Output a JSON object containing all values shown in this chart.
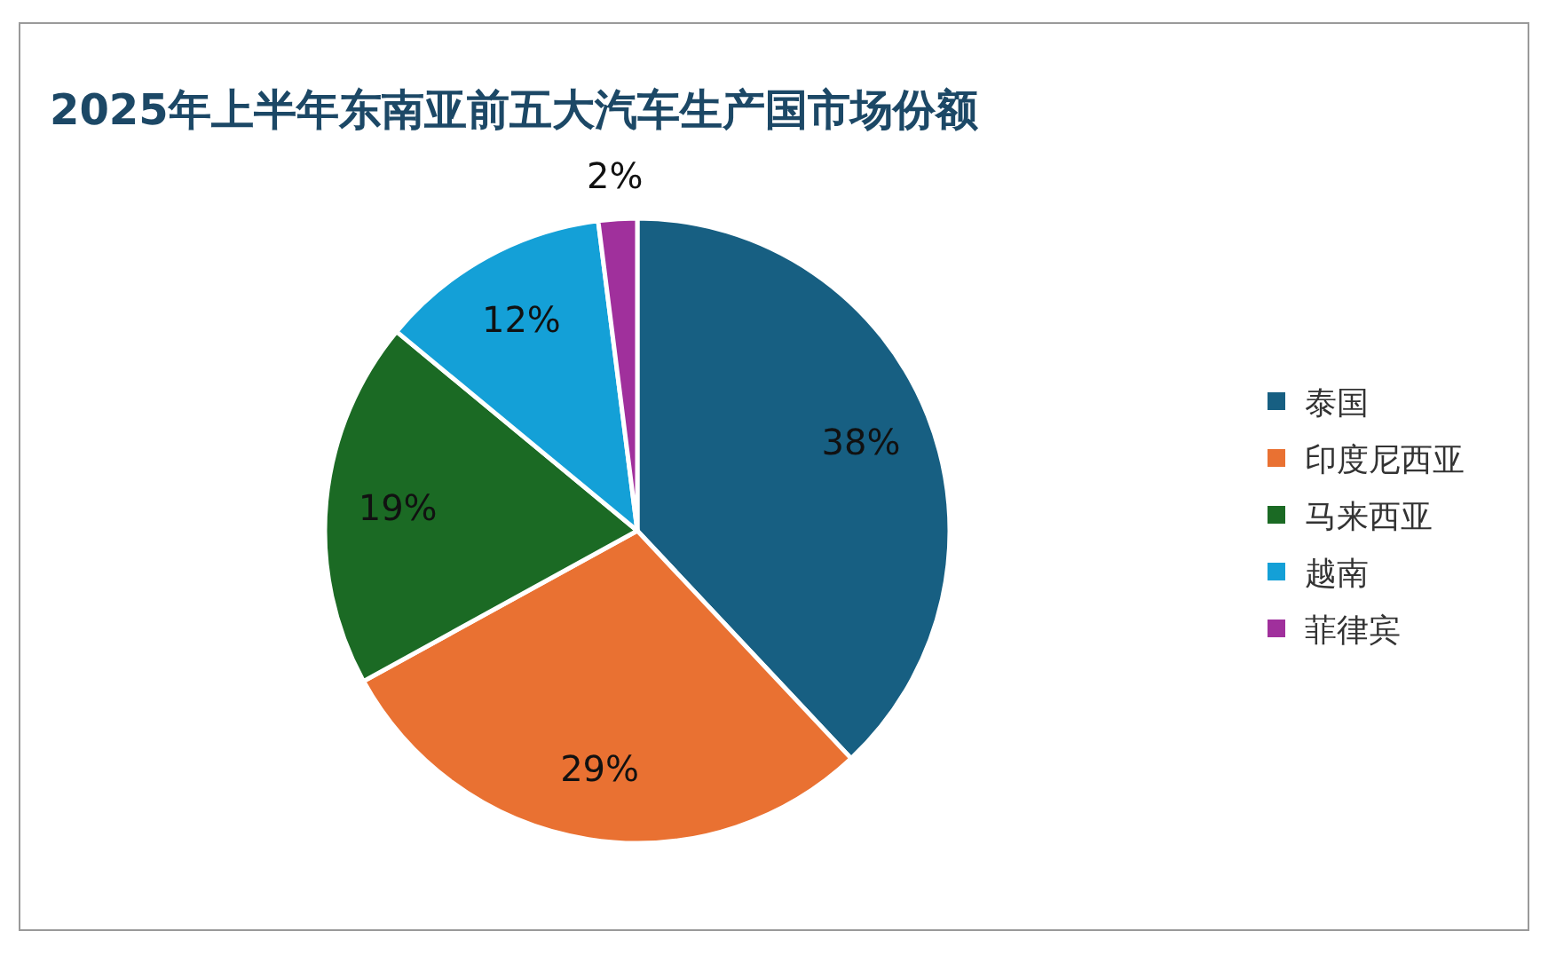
{
  "chart_data": {
    "type": "pie",
    "title": "2025年上半年东南亚前五大汽车生产国市场份额",
    "categories": [
      "泰国",
      "印度尼西亚",
      "马来西亚",
      "越南",
      "菲律宾"
    ],
    "values": [
      38,
      29,
      19,
      12,
      2
    ],
    "colors": [
      "#175f82",
      "#e97132",
      "#1b6a24",
      "#14a0d7",
      "#a0309c"
    ],
    "value_labels": [
      "38%",
      "29%",
      "19%",
      "12%",
      "2%"
    ],
    "legend": "right"
  }
}
